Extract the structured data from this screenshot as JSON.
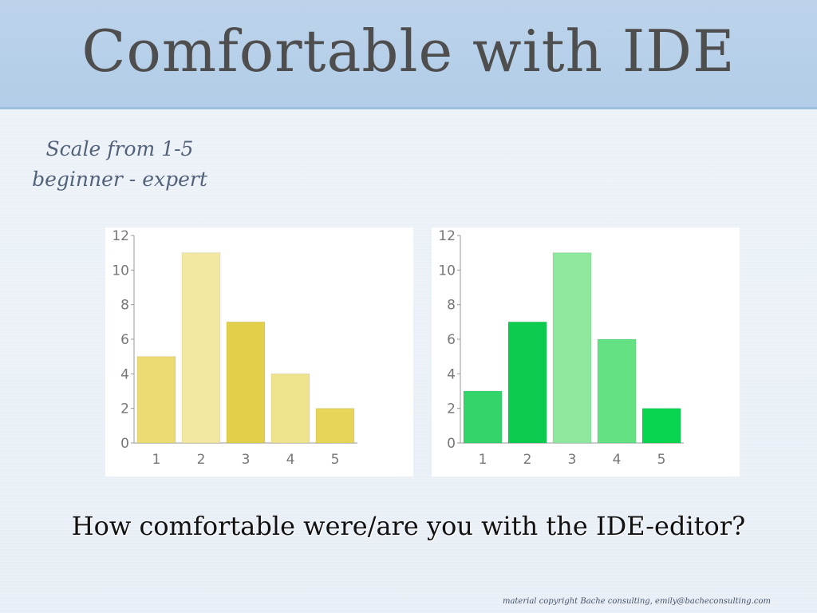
{
  "slide": {
    "title": "Comfortable with IDE",
    "subtitle_line1": "Scale from 1-5",
    "subtitle_line2": "beginner - expert",
    "question": "How comfortable were/are you with the IDE-editor?",
    "footer": "material copyright Bache consulting, emily@bacheconsulting.com"
  },
  "chart_data": [
    {
      "type": "bar",
      "categories": [
        "1",
        "2",
        "3",
        "4",
        "5"
      ],
      "values": [
        5,
        11,
        7,
        4,
        2
      ],
      "ylim": [
        0,
        12
      ],
      "yticks": [
        0,
        2,
        4,
        6,
        8,
        10,
        12
      ],
      "title": "",
      "xlabel": "",
      "ylabel": "",
      "grid": false,
      "colors": [
        "#eadb73",
        "#f3e8a2",
        "#e2d04a",
        "#efe28d",
        "#e6d558"
      ]
    },
    {
      "type": "bar",
      "categories": [
        "1",
        "2",
        "3",
        "4",
        "5"
      ],
      "values": [
        3,
        7,
        11,
        6,
        2
      ],
      "ylim": [
        0,
        12
      ],
      "yticks": [
        0,
        2,
        4,
        6,
        8,
        10,
        12
      ],
      "title": "",
      "xlabel": "",
      "ylabel": "",
      "grid": false,
      "colors": [
        "#33d56b",
        "#0ccc4f",
        "#8ee89e",
        "#63e183",
        "#0ad550"
      ]
    }
  ]
}
